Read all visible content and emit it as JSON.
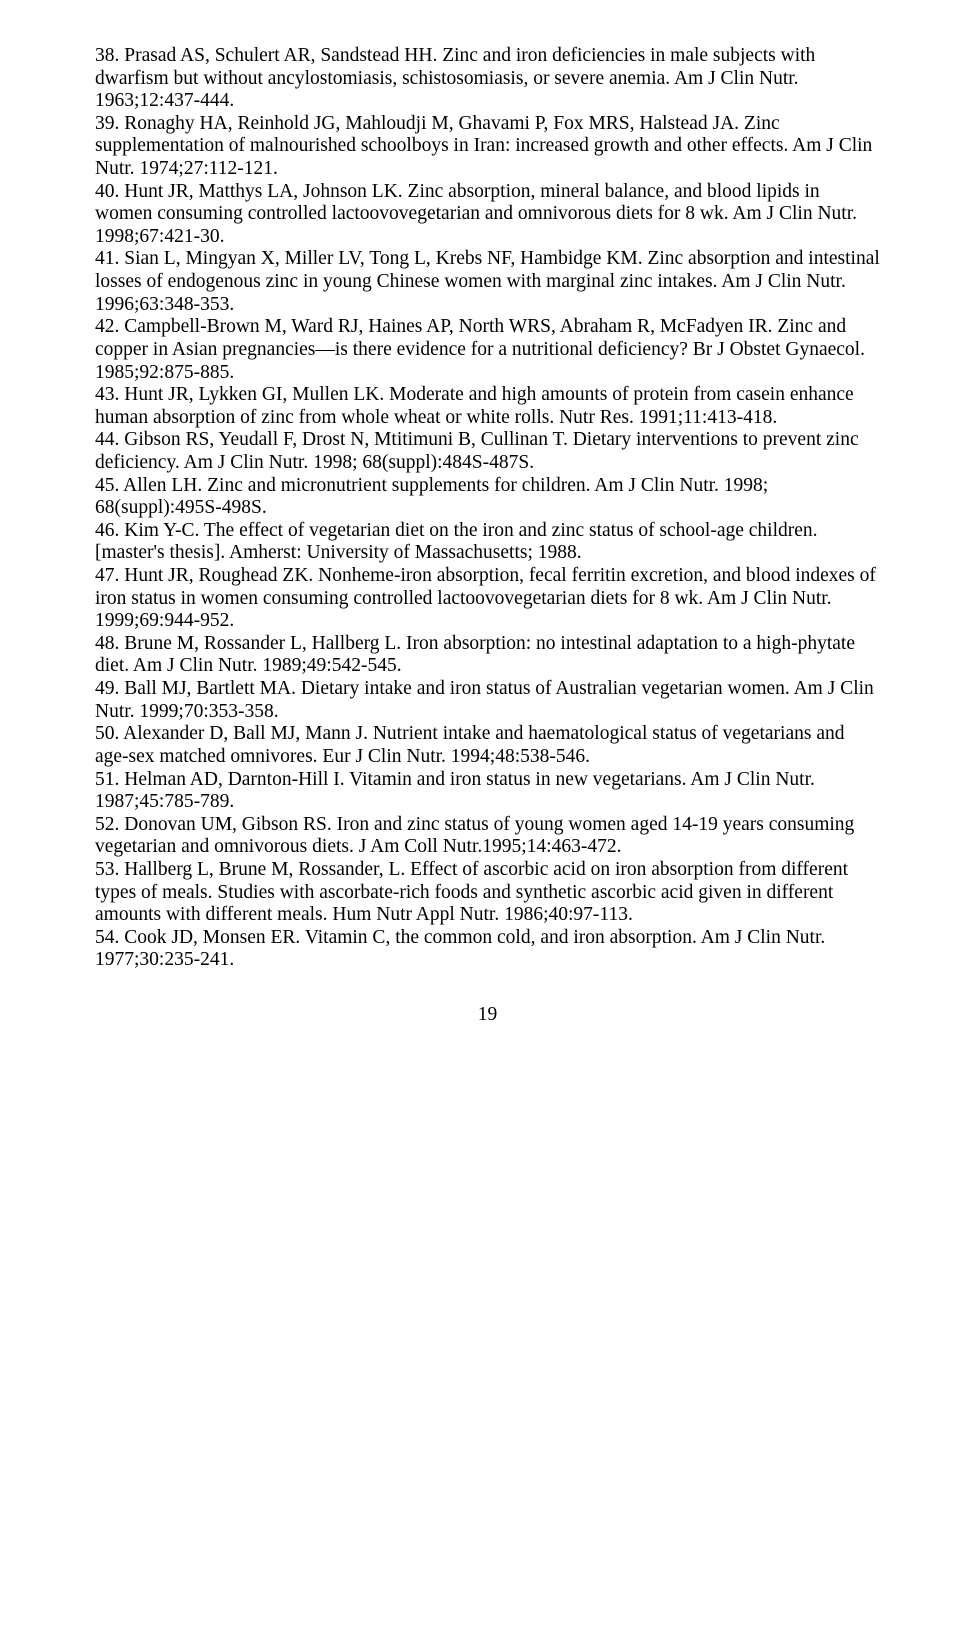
{
  "references": [
    "38. Prasad AS, Schulert AR, Sandstead HH. Zinc and iron deficiencies in male subjects with dwarfism but without ancylostomiasis, schistosomiasis, or severe anemia. Am J Clin Nutr. 1963;12:437-444.",
    "39. Ronaghy HA, Reinhold JG, Mahloudji M, Ghavami P, Fox MRS, Halstead JA. Zinc supplementation of malnourished schoolboys in Iran: increased growth and other effects. Am J Clin Nutr. 1974;27:112-121.",
    "40. Hunt JR, Matthys LA, Johnson LK. Zinc absorption, mineral balance, and blood lipids in women consuming controlled lactoovovegetarian and omnivorous diets for 8 wk. Am J Clin Nutr. 1998;67:421-30.",
    "41. Sian L, Mingyan X, Miller LV, Tong L, Krebs NF, Hambidge KM. Zinc absorption and intestinal losses of endogenous zinc in young Chinese women with marginal zinc intakes. Am J Clin Nutr. 1996;63:348-353.",
    "42. Campbell-Brown M, Ward RJ, Haines AP, North WRS, Abraham R, McFadyen IR. Zinc and copper in Asian pregnancies—is there evidence for a nutritional deficiency? Br J Obstet Gynaecol. 1985;92:875-885.",
    "43. Hunt JR, Lykken GI, Mullen LK. Moderate and high amounts of protein from casein enhance human absorption of zinc from whole wheat or white rolls. Nutr Res. 1991;11:413-418.",
    "44. Gibson RS, Yeudall F, Drost N, Mtitimuni B, Cullinan T. Dietary interventions to prevent zinc deficiency. Am J Clin Nutr. 1998; 68(suppl):484S-487S.",
    "45. Allen LH. Zinc and micronutrient supplements for children. Am J Clin Nutr. 1998; 68(suppl):495S-498S.",
    "46. Kim Y-C. The effect of vegetarian diet on the iron and zinc status of school-age children. [master's thesis]. Amherst: University of Massachusetts; 1988.",
    "47. Hunt JR, Roughead ZK. Nonheme-iron absorption, fecal ferritin excretion, and blood indexes of iron status in women consuming controlled lactoovovegetarian diets for 8 wk. Am J Clin Nutr. 1999;69:944-952.",
    "48. Brune M, Rossander L, Hallberg L. Iron absorption: no intestinal adaptation to a high-phytate diet. Am J Clin Nutr. 1989;49:542-545.",
    "49. Ball MJ, Bartlett MA. Dietary intake and iron status of Australian vegetarian women. Am J Clin Nutr. 1999;70:353-358.",
    "50. Alexander D, Ball MJ, Mann J. Nutrient intake and haematological status of vegetarians and age-sex matched omnivores. Eur J Clin Nutr. 1994;48:538-546.",
    "51. Helman AD, Darnton-Hill I. Vitamin and iron status in new vegetarians. Am J Clin Nutr. 1987;45:785-789.",
    "52. Donovan UM, Gibson RS. Iron and zinc status of young women aged 14-19 years consuming vegetarian and omnivorous diets. J Am Coll Nutr.1995;14:463-472.",
    "53. Hallberg L, Brune M, Rossander, L. Effect of ascorbic acid on iron absorption from different types of meals. Studies with ascorbate-rich foods and synthetic ascorbic acid given in different amounts with different meals. Hum Nutr Appl Nutr. 1986;40:97-113.",
    "54. Cook JD, Monsen ER. Vitamin C, the common cold, and iron absorption. Am J Clin Nutr. 1977;30:235-241."
  ],
  "page_number": "19"
}
